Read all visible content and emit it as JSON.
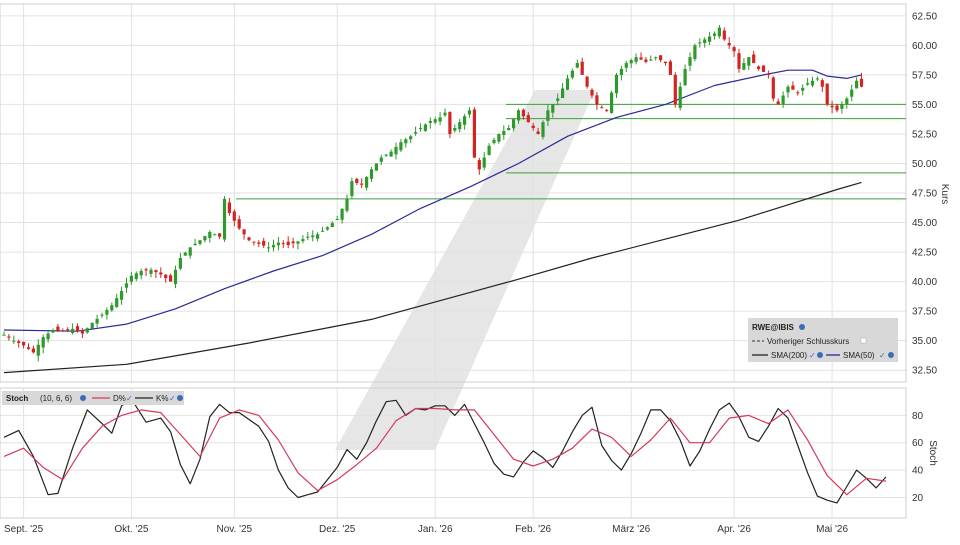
{
  "colors": {
    "background": "#ffffff",
    "grid": "#e2e2e2",
    "axis": "#cfcfcf",
    "candle_up": "#2e9a2e",
    "candle_down": "#d32424",
    "sma200": "#222222",
    "sma50": "#2a2a9a",
    "support_line": "#3aa13a",
    "stoch_k": "#222222",
    "stoch_d": "#d23a5a",
    "legend_bg": "#d8d8d8",
    "watermark": "#e6e6e6"
  },
  "watermark": {
    "icon": "diagonal-slash-logo"
  },
  "x_axis": {
    "labels": [
      "Sept. '25",
      "Okt. '25",
      "Nov. '25",
      "Dez. '25",
      "Jan. '26",
      "Feb. '26",
      "März '26",
      "Apr. '26",
      "Mai '26"
    ]
  },
  "price_panel": {
    "ylabel": "Kurs",
    "ylim": [
      31.5,
      63.5
    ],
    "ticks": [
      "32.50",
      "35.00",
      "37.50",
      "40.00",
      "42.50",
      "45.00",
      "47.50",
      "50.00",
      "52.50",
      "55.00",
      "57.50",
      "60.00",
      "62.50"
    ]
  },
  "legend": {
    "symbol": "RWE@IBIS",
    "prev_close": "Vorheriger Schlusskurs",
    "sma200": "SMA(200)",
    "sma50": "SMA(50)",
    "check": "✓"
  },
  "stoch_panel": {
    "title": "Stoch",
    "params": "(10, 6, 6)",
    "d_label": "D%",
    "k_label": "K%",
    "check": "✓",
    "ylabel": "Stoch",
    "ylim": [
      5,
      100
    ],
    "ticks": [
      "20",
      "40",
      "60",
      "80"
    ]
  },
  "chart_data": [
    {
      "type": "candlestick",
      "x_labels": [
        "Sept. '25",
        "Okt. '25",
        "Nov. '25",
        "Dez. '25",
        "Jan. '26",
        "Feb. '26",
        "März '26",
        "Apr. '26",
        "Mai '26"
      ],
      "ylabel": "Kurs",
      "ylim": [
        31.5,
        63.5
      ],
      "close_path": [
        [
          0,
          35.5
        ],
        [
          2,
          35.0
        ],
        [
          4,
          34.6
        ],
        [
          6,
          34.0
        ],
        [
          8,
          35.3
        ],
        [
          10,
          35.9
        ],
        [
          12,
          35.8
        ],
        [
          14,
          36.0
        ],
        [
          16,
          35.6
        ],
        [
          18,
          36.5
        ],
        [
          20,
          37.2
        ],
        [
          22,
          38.0
        ],
        [
          24,
          39.2
        ],
        [
          26,
          40.5
        ],
        [
          28,
          40.9
        ],
        [
          30,
          41.0
        ],
        [
          32,
          40.6
        ],
        [
          34,
          40.0
        ],
        [
          36,
          42.0
        ],
        [
          38,
          42.9
        ],
        [
          40,
          43.5
        ],
        [
          42,
          44.2
        ],
        [
          44,
          43.8
        ],
        [
          45,
          47.0
        ],
        [
          46,
          45.8
        ],
        [
          48,
          44.5
        ],
        [
          50,
          43.5
        ],
        [
          52,
          43.2
        ],
        [
          54,
          42.9
        ],
        [
          56,
          43.3
        ],
        [
          58,
          43.1
        ],
        [
          60,
          43.4
        ],
        [
          62,
          43.8
        ],
        [
          64,
          44.0
        ],
        [
          66,
          44.6
        ],
        [
          68,
          45.3
        ],
        [
          70,
          47.0
        ],
        [
          71,
          48.5
        ],
        [
          73,
          48.2
        ],
        [
          75,
          49.5
        ],
        [
          77,
          50.5
        ],
        [
          79,
          51.0
        ],
        [
          81,
          51.8
        ],
        [
          83,
          52.3
        ],
        [
          85,
          53.0
        ],
        [
          87,
          53.6
        ],
        [
          89,
          53.9
        ],
        [
          90,
          54.3
        ],
        [
          91,
          52.5
        ],
        [
          93,
          53.5
        ],
        [
          95,
          54.5
        ],
        [
          96,
          50.5
        ],
        [
          97,
          49.5
        ],
        [
          99,
          51.5
        ],
        [
          101,
          52.5
        ],
        [
          103,
          53.0
        ],
        [
          105,
          54.5
        ],
        [
          107,
          53.5
        ],
        [
          109,
          52.5
        ],
        [
          111,
          54.5
        ],
        [
          113,
          55.5
        ],
        [
          115,
          57.2
        ],
        [
          117,
          58.5
        ],
        [
          119,
          56.5
        ],
        [
          121,
          55.0
        ],
        [
          123,
          54.5
        ],
        [
          125,
          57.5
        ],
        [
          127,
          58.5
        ],
        [
          129,
          59.0
        ],
        [
          131,
          58.6
        ],
        [
          133,
          59.0
        ],
        [
          135,
          58.5
        ],
        [
          136,
          57.5
        ],
        [
          137,
          55.0
        ],
        [
          139,
          58.0
        ],
        [
          141,
          60.0
        ],
        [
          143,
          60.5
        ],
        [
          145,
          61.0
        ],
        [
          146,
          61.5
        ],
        [
          147,
          60.5
        ],
        [
          149,
          59.5
        ],
        [
          150,
          58.0
        ],
        [
          152,
          59.0
        ],
        [
          154,
          58.0
        ],
        [
          156,
          57.5
        ],
        [
          157,
          55.5
        ],
        [
          158,
          55.0
        ],
        [
          160,
          56.5
        ],
        [
          162,
          56.0
        ],
        [
          164,
          56.8
        ],
        [
          166,
          57.2
        ],
        [
          167,
          56.5
        ],
        [
          168,
          55.0
        ],
        [
          170,
          54.5
        ],
        [
          172,
          55.5
        ],
        [
          174,
          57.0
        ],
        [
          175,
          56.5
        ]
      ],
      "sma50": [
        [
          0,
          35.9
        ],
        [
          15,
          35.8
        ],
        [
          25,
          36.4
        ],
        [
          35,
          37.7
        ],
        [
          45,
          39.4
        ],
        [
          55,
          40.9
        ],
        [
          65,
          42.2
        ],
        [
          75,
          44.0
        ],
        [
          85,
          46.2
        ],
        [
          95,
          48.0
        ],
        [
          105,
          50.0
        ],
        [
          115,
          52.3
        ],
        [
          125,
          53.9
        ],
        [
          135,
          55.0
        ],
        [
          145,
          56.6
        ],
        [
          155,
          57.5
        ],
        [
          160,
          57.9
        ],
        [
          165,
          57.9
        ],
        [
          168,
          57.4
        ],
        [
          172,
          57.2
        ],
        [
          175,
          57.5
        ]
      ],
      "sma200": [
        [
          0,
          32.3
        ],
        [
          25,
          33.0
        ],
        [
          50,
          34.8
        ],
        [
          75,
          36.8
        ],
        [
          90,
          38.5
        ],
        [
          105,
          40.2
        ],
        [
          120,
          42.0
        ],
        [
          135,
          43.6
        ],
        [
          150,
          45.2
        ],
        [
          160,
          46.5
        ],
        [
          170,
          47.8
        ],
        [
          175,
          48.4
        ]
      ],
      "horizontal_levels": [
        47.0,
        49.2,
        53.8,
        55.0
      ]
    },
    {
      "type": "line",
      "title": "Stoch",
      "ylabel": "Stoch",
      "ylim": [
        5,
        100
      ],
      "series": [
        {
          "name": "K%",
          "points": [
            [
              0,
              64
            ],
            [
              3,
              69
            ],
            [
              6,
              50
            ],
            [
              9,
              22
            ],
            [
              11,
              23
            ],
            [
              14,
              56
            ],
            [
              17,
              84
            ],
            [
              20,
              74
            ],
            [
              22,
              67
            ],
            [
              24,
              87
            ],
            [
              26,
              92
            ],
            [
              29,
              75
            ],
            [
              32,
              78
            ],
            [
              34,
              68
            ],
            [
              36,
              44
            ],
            [
              38,
              30
            ],
            [
              40,
              48
            ],
            [
              42,
              79
            ],
            [
              44,
              88
            ],
            [
              46,
              82
            ],
            [
              48,
              82
            ],
            [
              50,
              77
            ],
            [
              52,
              72
            ],
            [
              54,
              61
            ],
            [
              56,
              40
            ],
            [
              58,
              27
            ],
            [
              60,
              20
            ],
            [
              62,
              22
            ],
            [
              64,
              24
            ],
            [
              66,
              33
            ],
            [
              68,
              42
            ],
            [
              70,
              55
            ],
            [
              72,
              48
            ],
            [
              74,
              60
            ],
            [
              76,
              76
            ],
            [
              78,
              90
            ],
            [
              80,
              91
            ],
            [
              82,
              80
            ],
            [
              84,
              85
            ],
            [
              86,
              84
            ],
            [
              88,
              87
            ],
            [
              90,
              87
            ],
            [
              92,
              80
            ],
            [
              94,
              88
            ],
            [
              96,
              74
            ],
            [
              98,
              60
            ],
            [
              100,
              45
            ],
            [
              102,
              37
            ],
            [
              104,
              35
            ],
            [
              106,
              46
            ],
            [
              108,
              54
            ],
            [
              110,
              49
            ],
            [
              112,
              42
            ],
            [
              114,
              54
            ],
            [
              116,
              68
            ],
            [
              118,
              80
            ],
            [
              120,
              86
            ],
            [
              122,
              58
            ],
            [
              124,
              47
            ],
            [
              126,
              40
            ],
            [
              128,
              52
            ],
            [
              130,
              67
            ],
            [
              132,
              84
            ],
            [
              134,
              84
            ],
            [
              136,
              76
            ],
            [
              138,
              62
            ],
            [
              140,
              43
            ],
            [
              142,
              54
            ],
            [
              144,
              70
            ],
            [
              146,
              84
            ],
            [
              148,
              89
            ],
            [
              150,
              79
            ],
            [
              152,
              64
            ],
            [
              154,
              61
            ],
            [
              156,
              72
            ],
            [
              158,
              85
            ],
            [
              160,
              78
            ],
            [
              162,
              58
            ],
            [
              164,
              38
            ],
            [
              166,
              21
            ],
            [
              168,
              18
            ],
            [
              170,
              16
            ],
            [
              172,
              28
            ],
            [
              174,
              40
            ],
            [
              176,
              34
            ],
            [
              178,
              27
            ],
            [
              180,
              35
            ]
          ]
        },
        {
          "name": "D%",
          "points": [
            [
              0,
              50
            ],
            [
              4,
              56
            ],
            [
              8,
              42
            ],
            [
              12,
              33
            ],
            [
              16,
              56
            ],
            [
              20,
              72
            ],
            [
              24,
              80
            ],
            [
              28,
              84
            ],
            [
              32,
              82
            ],
            [
              36,
              66
            ],
            [
              40,
              50
            ],
            [
              44,
              78
            ],
            [
              48,
              84
            ],
            [
              52,
              80
            ],
            [
              56,
              62
            ],
            [
              60,
              38
            ],
            [
              64,
              25
            ],
            [
              68,
              33
            ],
            [
              72,
              44
            ],
            [
              76,
              56
            ],
            [
              80,
              76
            ],
            [
              84,
              85
            ],
            [
              88,
              85
            ],
            [
              92,
              84
            ],
            [
              96,
              84
            ],
            [
              100,
              66
            ],
            [
              104,
              48
            ],
            [
              108,
              43
            ],
            [
              112,
              48
            ],
            [
              116,
              56
            ],
            [
              120,
              70
            ],
            [
              124,
              64
            ],
            [
              128,
              50
            ],
            [
              132,
              62
            ],
            [
              136,
              78
            ],
            [
              140,
              60
            ],
            [
              144,
              60
            ],
            [
              148,
              78
            ],
            [
              152,
              80
            ],
            [
              156,
              74
            ],
            [
              160,
              84
            ],
            [
              164,
              62
            ],
            [
              168,
              36
            ],
            [
              172,
              22
            ],
            [
              176,
              34
            ],
            [
              180,
              32
            ]
          ]
        }
      ],
      "ticks": [
        20,
        40,
        60,
        80
      ]
    }
  ]
}
